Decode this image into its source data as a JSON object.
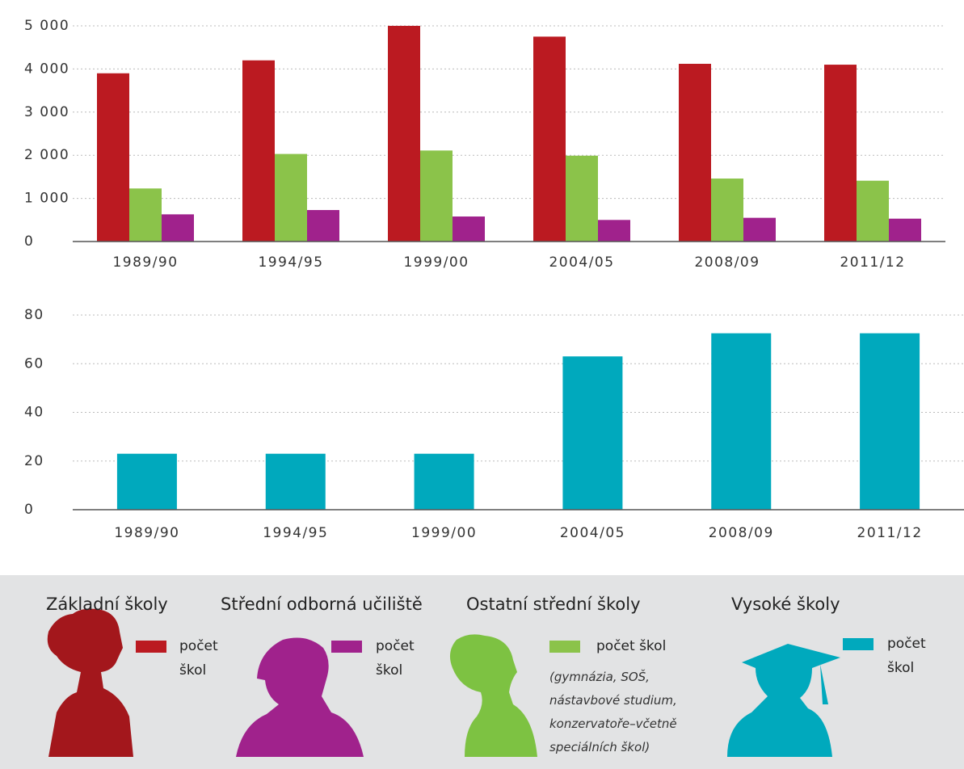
{
  "chart_data": [
    {
      "type": "bar",
      "categories": [
        "1989/90",
        "1994/95",
        "1999/00",
        "2004/05",
        "2008/09",
        "2011/12"
      ],
      "series": [
        {
          "name": "Základní školy",
          "color": "#bb1a21",
          "label": "počet škol",
          "values": [
            3900,
            4200,
            5000,
            4750,
            4120,
            4100
          ]
        },
        {
          "name": "Ostatní střední školy",
          "color": "#8bc34a",
          "label": "počet škol",
          "note": "(gymnázia, SOŠ, nástavbové studium, konzervatoře–včetně speciálních škol)",
          "values": [
            1230,
            2030,
            2110,
            1990,
            1460,
            1410
          ]
        },
        {
          "name": "Střední odborná učiliště",
          "color": "#a0228c",
          "label": "počet škol",
          "values": [
            630,
            730,
            580,
            500,
            550,
            530
          ]
        }
      ],
      "ylim": [
        0,
        5000
      ],
      "yticks": [
        0,
        {
          "value": 1000,
          "label": "1 000"
        },
        {
          "value": 2000,
          "label": "2 000"
        },
        {
          "value": 3000,
          "label": "3 000"
        },
        {
          "value": 4000,
          "label": "4 000"
        },
        {
          "value": 5000,
          "label": "5 000"
        }
      ],
      "grid": true
    },
    {
      "type": "bar",
      "categories": [
        "1989/90",
        "1994/95",
        "1999/00",
        "2004/05",
        "2008/09",
        "2011/12"
      ],
      "series": [
        {
          "name": "Vysoké školy",
          "color": "#00a9bd",
          "label": "počet škol",
          "values": [
            23,
            23,
            23,
            63,
            72.5,
            72.5
          ]
        }
      ],
      "ylim": [
        0,
        80
      ],
      "yticks": [
        0,
        20,
        40,
        60,
        80
      ],
      "grid": true
    }
  ]
}
